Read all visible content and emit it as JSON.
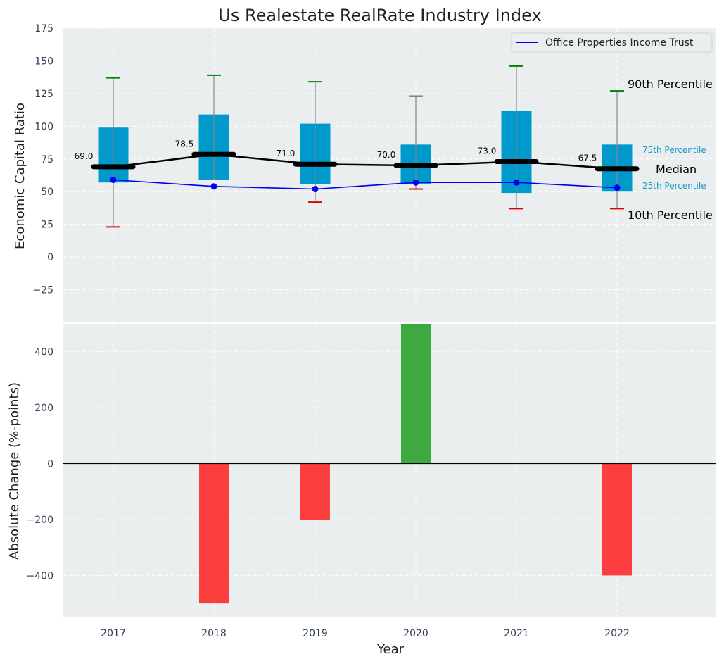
{
  "colors": {
    "panel_bg": "#eaeeef",
    "grid": "#ffffff",
    "box_fill": "#0099cc",
    "median": "#000000",
    "company_line": "#0000ee",
    "whisker": "#888888",
    "p90_cap": "#008000",
    "p10_cap": "#dd0000",
    "positive_bar": "#2ca02c",
    "negative_bar": "#ff2a2a",
    "tick_text": "#2e3e55",
    "percentile_text": "#1a9ac8"
  },
  "chart_data": [
    {
      "type": "box",
      "title": "Us Realestate RealRate Industry Index",
      "ylabel": "Economic Capital Ratio",
      "ylim": [
        -50,
        175
      ],
      "yticks": [
        -25,
        0,
        25,
        50,
        75,
        100,
        125,
        150,
        175
      ],
      "categories": [
        "2017",
        "2018",
        "2019",
        "2020",
        "2021",
        "2022"
      ],
      "p10": [
        23,
        null,
        42,
        52,
        37,
        37
      ],
      "p25": [
        57,
        59,
        56,
        56,
        49,
        50
      ],
      "median": [
        69.0,
        78.5,
        71.0,
        70.0,
        73.0,
        67.5
      ],
      "median_labels": [
        "69.0",
        "78.5",
        "71.0",
        "70.0",
        "73.0",
        "67.5"
      ],
      "p75": [
        99,
        109,
        102,
        86,
        112,
        86
      ],
      "p90": [
        137,
        139,
        134,
        123,
        146,
        127
      ],
      "series": [
        {
          "name": "Office Properties Income Trust",
          "values": [
            59,
            54,
            52,
            57,
            57,
            53
          ]
        }
      ],
      "annotations": {
        "p90": "90th Percentile",
        "p75": "75th Percentile",
        "median": "Median",
        "p25": "25th Percentile",
        "p10": "10th Percentile"
      },
      "legend_position": "top-right",
      "grid": true
    },
    {
      "type": "bar",
      "xlabel": "Year",
      "ylabel": "Absolute Change (%-points)",
      "ylim": [
        -550,
        500
      ],
      "yticks": [
        -400,
        -200,
        0,
        200,
        400
      ],
      "categories": [
        "2017",
        "2018",
        "2019",
        "2020",
        "2021",
        "2022"
      ],
      "values": [
        0,
        -500,
        -200,
        500,
        0,
        -400
      ],
      "grid": true
    }
  ]
}
